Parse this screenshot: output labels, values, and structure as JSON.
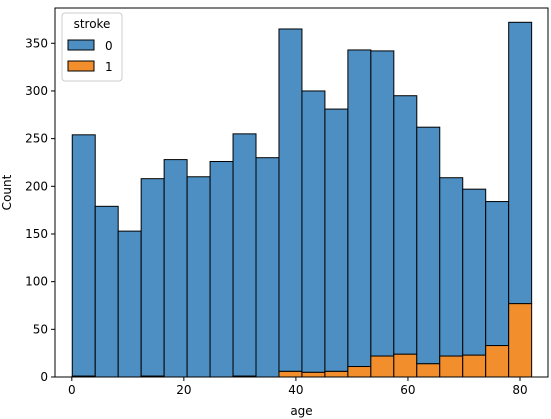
{
  "chart_data": {
    "type": "bar",
    "stacked": true,
    "xlabel": "age",
    "ylabel": "Count",
    "xlim": [
      -3,
      85
    ],
    "ylim": [
      0,
      387
    ],
    "xticks": [
      0,
      20,
      40,
      60,
      80
    ],
    "yticks": [
      0,
      50,
      100,
      150,
      200,
      250,
      300,
      350
    ],
    "bin_edges": [
      0.08,
      4.18,
      8.28,
      12.38,
      16.48,
      20.58,
      24.68,
      28.78,
      32.88,
      36.98,
      41.08,
      45.18,
      49.28,
      53.38,
      57.48,
      61.58,
      65.68,
      69.78,
      73.88,
      77.98,
      82.08
    ],
    "legend": {
      "title": "stroke",
      "position": "top-left"
    },
    "grid": false,
    "series": [
      {
        "name": "0",
        "color": "#4d8fc3",
        "values": [
          253,
          179,
          153,
          207,
          228,
          210,
          226,
          254,
          230,
          359,
          295,
          275,
          332,
          320,
          271,
          248,
          187,
          174,
          151,
          295
        ]
      },
      {
        "name": "1",
        "color": "#f28e2b",
        "values": [
          1,
          0,
          0,
          1,
          0,
          0,
          0,
          1,
          0,
          6,
          5,
          6,
          11,
          22,
          24,
          14,
          22,
          23,
          33,
          77
        ]
      }
    ]
  }
}
